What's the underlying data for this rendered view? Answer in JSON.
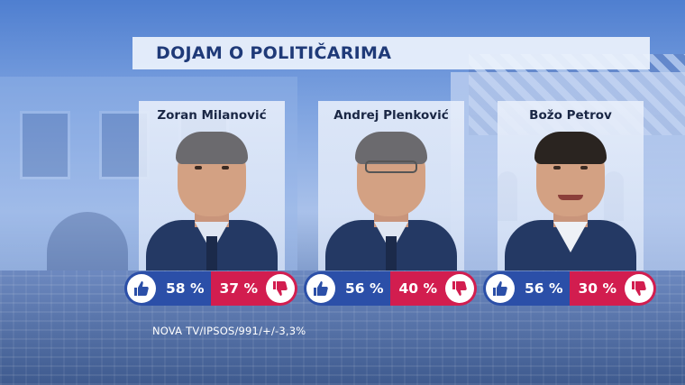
{
  "title": "DOJAM O POLITIČARIMA",
  "politicians": [
    {
      "name": "Zoran Milanović",
      "positive": "58 %",
      "negative": "37 %"
    },
    {
      "name": "Andrej Plenković",
      "positive": "56 %",
      "negative": "40 %"
    },
    {
      "name": "Božo Petrov",
      "positive": "56 %",
      "negative": "30 %"
    }
  ],
  "source": "NOVA TV/IPSOS/991/+/-3,3%",
  "colors": {
    "positive": "#2b4fa8",
    "negative": "#d21d4f",
    "title_text": "#1f3a78"
  },
  "icons": {
    "positive": "thumbs-up-icon",
    "negative": "thumbs-down-icon"
  }
}
